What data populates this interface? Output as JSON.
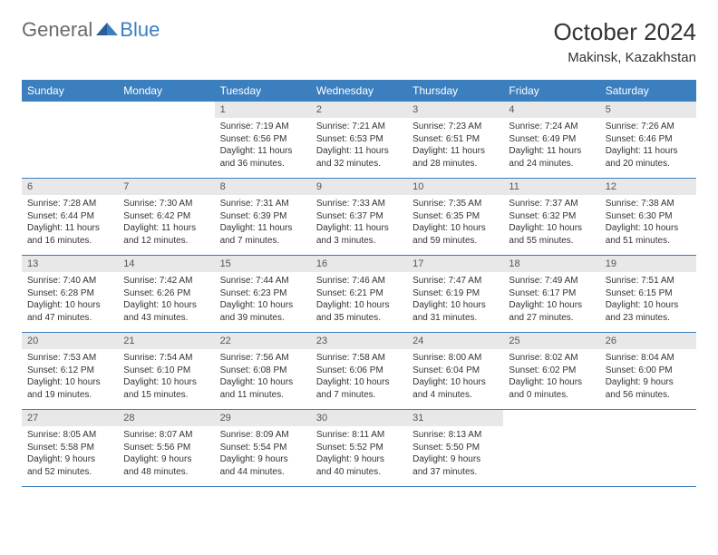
{
  "colors": {
    "header_bg": "#3b7fbf",
    "daynum_bg": "#e8e8e8",
    "week_border": "#3b7fbf",
    "logo_gray": "#6b6b6b",
    "logo_blue": "#3b7fbf",
    "text": "#333333"
  },
  "logo": {
    "general": "General",
    "blue": "Blue"
  },
  "title": "October 2024",
  "location": "Makinsk, Kazakhstan",
  "weekdays": [
    "Sunday",
    "Monday",
    "Tuesday",
    "Wednesday",
    "Thursday",
    "Friday",
    "Saturday"
  ],
  "weeks": [
    [
      null,
      null,
      {
        "n": "1",
        "sr": "Sunrise: 7:19 AM",
        "ss": "Sunset: 6:56 PM",
        "dl": "Daylight: 11 hours and 36 minutes."
      },
      {
        "n": "2",
        "sr": "Sunrise: 7:21 AM",
        "ss": "Sunset: 6:53 PM",
        "dl": "Daylight: 11 hours and 32 minutes."
      },
      {
        "n": "3",
        "sr": "Sunrise: 7:23 AM",
        "ss": "Sunset: 6:51 PM",
        "dl": "Daylight: 11 hours and 28 minutes."
      },
      {
        "n": "4",
        "sr": "Sunrise: 7:24 AM",
        "ss": "Sunset: 6:49 PM",
        "dl": "Daylight: 11 hours and 24 minutes."
      },
      {
        "n": "5",
        "sr": "Sunrise: 7:26 AM",
        "ss": "Sunset: 6:46 PM",
        "dl": "Daylight: 11 hours and 20 minutes."
      }
    ],
    [
      {
        "n": "6",
        "sr": "Sunrise: 7:28 AM",
        "ss": "Sunset: 6:44 PM",
        "dl": "Daylight: 11 hours and 16 minutes."
      },
      {
        "n": "7",
        "sr": "Sunrise: 7:30 AM",
        "ss": "Sunset: 6:42 PM",
        "dl": "Daylight: 11 hours and 12 minutes."
      },
      {
        "n": "8",
        "sr": "Sunrise: 7:31 AM",
        "ss": "Sunset: 6:39 PM",
        "dl": "Daylight: 11 hours and 7 minutes."
      },
      {
        "n": "9",
        "sr": "Sunrise: 7:33 AM",
        "ss": "Sunset: 6:37 PM",
        "dl": "Daylight: 11 hours and 3 minutes."
      },
      {
        "n": "10",
        "sr": "Sunrise: 7:35 AM",
        "ss": "Sunset: 6:35 PM",
        "dl": "Daylight: 10 hours and 59 minutes."
      },
      {
        "n": "11",
        "sr": "Sunrise: 7:37 AM",
        "ss": "Sunset: 6:32 PM",
        "dl": "Daylight: 10 hours and 55 minutes."
      },
      {
        "n": "12",
        "sr": "Sunrise: 7:38 AM",
        "ss": "Sunset: 6:30 PM",
        "dl": "Daylight: 10 hours and 51 minutes."
      }
    ],
    [
      {
        "n": "13",
        "sr": "Sunrise: 7:40 AM",
        "ss": "Sunset: 6:28 PM",
        "dl": "Daylight: 10 hours and 47 minutes."
      },
      {
        "n": "14",
        "sr": "Sunrise: 7:42 AM",
        "ss": "Sunset: 6:26 PM",
        "dl": "Daylight: 10 hours and 43 minutes."
      },
      {
        "n": "15",
        "sr": "Sunrise: 7:44 AM",
        "ss": "Sunset: 6:23 PM",
        "dl": "Daylight: 10 hours and 39 minutes."
      },
      {
        "n": "16",
        "sr": "Sunrise: 7:46 AM",
        "ss": "Sunset: 6:21 PM",
        "dl": "Daylight: 10 hours and 35 minutes."
      },
      {
        "n": "17",
        "sr": "Sunrise: 7:47 AM",
        "ss": "Sunset: 6:19 PM",
        "dl": "Daylight: 10 hours and 31 minutes."
      },
      {
        "n": "18",
        "sr": "Sunrise: 7:49 AM",
        "ss": "Sunset: 6:17 PM",
        "dl": "Daylight: 10 hours and 27 minutes."
      },
      {
        "n": "19",
        "sr": "Sunrise: 7:51 AM",
        "ss": "Sunset: 6:15 PM",
        "dl": "Daylight: 10 hours and 23 minutes."
      }
    ],
    [
      {
        "n": "20",
        "sr": "Sunrise: 7:53 AM",
        "ss": "Sunset: 6:12 PM",
        "dl": "Daylight: 10 hours and 19 minutes."
      },
      {
        "n": "21",
        "sr": "Sunrise: 7:54 AM",
        "ss": "Sunset: 6:10 PM",
        "dl": "Daylight: 10 hours and 15 minutes."
      },
      {
        "n": "22",
        "sr": "Sunrise: 7:56 AM",
        "ss": "Sunset: 6:08 PM",
        "dl": "Daylight: 10 hours and 11 minutes."
      },
      {
        "n": "23",
        "sr": "Sunrise: 7:58 AM",
        "ss": "Sunset: 6:06 PM",
        "dl": "Daylight: 10 hours and 7 minutes."
      },
      {
        "n": "24",
        "sr": "Sunrise: 8:00 AM",
        "ss": "Sunset: 6:04 PM",
        "dl": "Daylight: 10 hours and 4 minutes."
      },
      {
        "n": "25",
        "sr": "Sunrise: 8:02 AM",
        "ss": "Sunset: 6:02 PM",
        "dl": "Daylight: 10 hours and 0 minutes."
      },
      {
        "n": "26",
        "sr": "Sunrise: 8:04 AM",
        "ss": "Sunset: 6:00 PM",
        "dl": "Daylight: 9 hours and 56 minutes."
      }
    ],
    [
      {
        "n": "27",
        "sr": "Sunrise: 8:05 AM",
        "ss": "Sunset: 5:58 PM",
        "dl": "Daylight: 9 hours and 52 minutes."
      },
      {
        "n": "28",
        "sr": "Sunrise: 8:07 AM",
        "ss": "Sunset: 5:56 PM",
        "dl": "Daylight: 9 hours and 48 minutes."
      },
      {
        "n": "29",
        "sr": "Sunrise: 8:09 AM",
        "ss": "Sunset: 5:54 PM",
        "dl": "Daylight: 9 hours and 44 minutes."
      },
      {
        "n": "30",
        "sr": "Sunrise: 8:11 AM",
        "ss": "Sunset: 5:52 PM",
        "dl": "Daylight: 9 hours and 40 minutes."
      },
      {
        "n": "31",
        "sr": "Sunrise: 8:13 AM",
        "ss": "Sunset: 5:50 PM",
        "dl": "Daylight: 9 hours and 37 minutes."
      },
      null,
      null
    ]
  ]
}
